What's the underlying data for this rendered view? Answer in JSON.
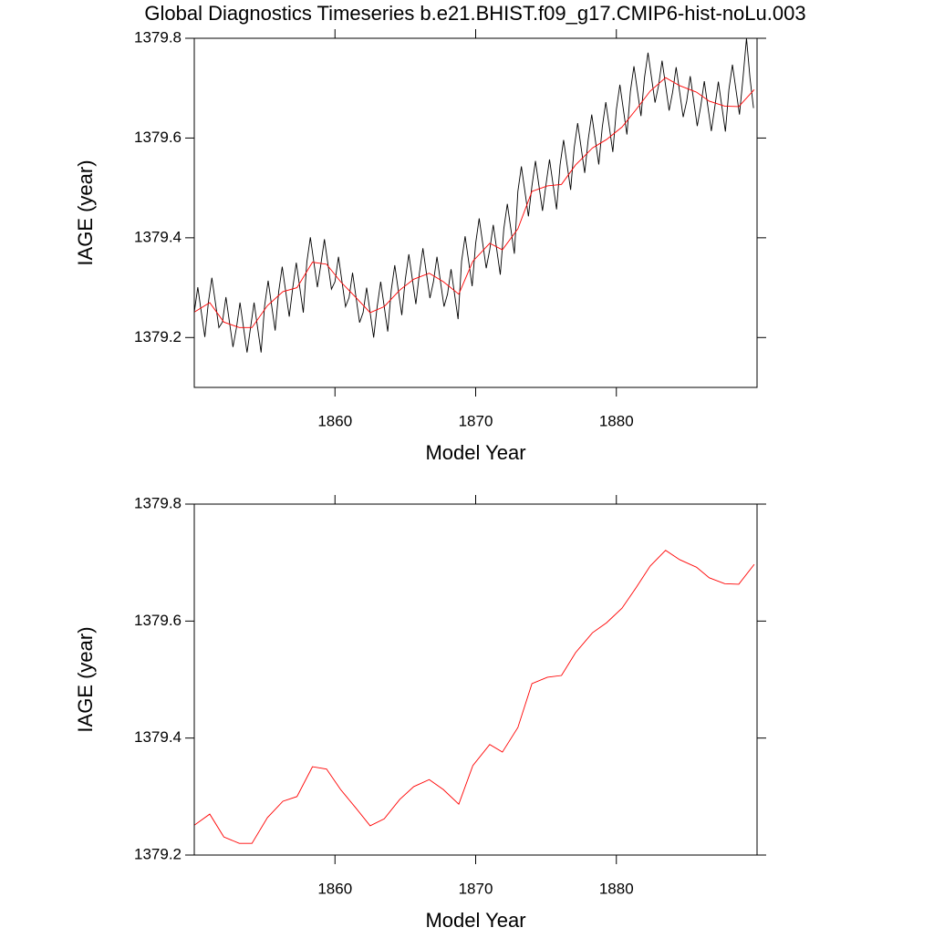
{
  "chart_data": [
    {
      "type": "line",
      "title": "Global Diagnostics Timeseries b.e21.BHIST.f09_g17.CMIP6-hist-noLu.003",
      "xlabel": "Model Year",
      "ylabel": "IAGE (year)",
      "xlim": [
        1850,
        1890
      ],
      "ylim": [
        1379.1,
        1379.8
      ],
      "xticks": [
        1860,
        1870,
        1880
      ],
      "yticks": [
        1379.2,
        1379.4,
        1379.6,
        1379.8
      ],
      "series": [
        {
          "color": "#000000",
          "x": [
            1850,
            1850.25,
            1850.5,
            1850.75,
            1851,
            1851.25,
            1851.5,
            1851.75,
            1852,
            1852.25,
            1852.5,
            1852.75,
            1853,
            1853.25,
            1853.5,
            1853.75,
            1854,
            1854.25,
            1854.5,
            1854.75,
            1855,
            1855.25,
            1855.5,
            1855.75,
            1856,
            1856.25,
            1856.5,
            1856.75,
            1857,
            1857.25,
            1857.5,
            1857.75,
            1858,
            1858.25,
            1858.5,
            1858.75,
            1859,
            1859.25,
            1859.5,
            1859.75,
            1860,
            1860.25,
            1860.5,
            1860.75,
            1861,
            1861.25,
            1861.5,
            1861.75,
            1862,
            1862.25,
            1862.5,
            1862.75,
            1863,
            1863.25,
            1863.5,
            1863.75,
            1864,
            1864.25,
            1864.5,
            1864.75,
            1865,
            1865.25,
            1865.5,
            1865.75,
            1866,
            1866.25,
            1866.5,
            1866.75,
            1867,
            1867.25,
            1867.5,
            1867.75,
            1868,
            1868.25,
            1868.5,
            1868.75,
            1869,
            1869.25,
            1869.5,
            1869.75,
            1870,
            1870.25,
            1870.5,
            1870.75,
            1871,
            1871.25,
            1871.5,
            1871.75,
            1872,
            1872.25,
            1872.5,
            1872.75,
            1873,
            1873.25,
            1873.5,
            1873.75,
            1874,
            1874.25,
            1874.5,
            1874.75,
            1875,
            1875.25,
            1875.5,
            1875.75,
            1876,
            1876.25,
            1876.5,
            1876.75,
            1877,
            1877.25,
            1877.5,
            1877.75,
            1878,
            1878.25,
            1878.5,
            1878.75,
            1879,
            1879.25,
            1879.5,
            1879.75,
            1880,
            1880.25,
            1880.5,
            1880.75,
            1881,
            1881.25,
            1881.5,
            1881.75,
            1882,
            1882.25,
            1882.5,
            1882.75,
            1883,
            1883.25,
            1883.5,
            1883.75,
            1884,
            1884.25,
            1884.5,
            1884.75,
            1885,
            1885.25,
            1885.5,
            1885.75,
            1886,
            1886.25,
            1886.5,
            1886.75,
            1887,
            1887.25,
            1887.5,
            1887.75,
            1888,
            1888.25,
            1888.5,
            1888.75,
            1889,
            1889.25,
            1889.5,
            1889.75
          ],
          "values": [
            1379.251,
            1379.301,
            1379.251,
            1379.201,
            1379.27,
            1379.32,
            1379.27,
            1379.22,
            1379.231,
            1379.281,
            1379.231,
            1379.181,
            1379.22,
            1379.27,
            1379.22,
            1379.17,
            1379.22,
            1379.27,
            1379.22,
            1379.17,
            1379.264,
            1379.314,
            1379.264,
            1379.214,
            1379.292,
            1379.342,
            1379.292,
            1379.242,
            1379.3,
            1379.35,
            1379.3,
            1379.25,
            1379.351,
            1379.401,
            1379.351,
            1379.301,
            1379.347,
            1379.397,
            1379.347,
            1379.297,
            1379.312,
            1379.362,
            1379.312,
            1379.262,
            1379.28,
            1379.33,
            1379.28,
            1379.23,
            1379.25,
            1379.3,
            1379.25,
            1379.2,
            1379.262,
            1379.312,
            1379.262,
            1379.212,
            1379.295,
            1379.345,
            1379.295,
            1379.245,
            1379.317,
            1379.367,
            1379.317,
            1379.267,
            1379.329,
            1379.379,
            1379.329,
            1379.279,
            1379.312,
            1379.362,
            1379.312,
            1379.262,
            1379.287,
            1379.337,
            1379.287,
            1379.237,
            1379.353,
            1379.403,
            1379.353,
            1379.303,
            1379.389,
            1379.439,
            1379.389,
            1379.339,
            1379.376,
            1379.426,
            1379.376,
            1379.326,
            1379.418,
            1379.468,
            1379.418,
            1379.368,
            1379.493,
            1379.543,
            1379.493,
            1379.443,
            1379.504,
            1379.554,
            1379.504,
            1379.454,
            1379.507,
            1379.557,
            1379.507,
            1379.457,
            1379.546,
            1379.596,
            1379.546,
            1379.496,
            1379.58,
            1379.63,
            1379.58,
            1379.53,
            1379.597,
            1379.647,
            1379.597,
            1379.547,
            1379.622,
            1379.672,
            1379.622,
            1379.572,
            1379.657,
            1379.707,
            1379.657,
            1379.607,
            1379.694,
            1379.744,
            1379.694,
            1379.644,
            1379.721,
            1379.771,
            1379.721,
            1379.671,
            1379.705,
            1379.755,
            1379.705,
            1379.655,
            1379.692,
            1379.742,
            1379.692,
            1379.642,
            1379.674,
            1379.724,
            1379.674,
            1379.624,
            1379.664,
            1379.714,
            1379.664,
            1379.614,
            1379.663,
            1379.713,
            1379.663,
            1379.613,
            1379.697,
            1379.747,
            1379.697,
            1379.647,
            1379.72,
            1379.8,
            1379.72,
            1379.66
          ]
        },
        {
          "color": "#ff0000",
          "x": [
            1850.0,
            1851.1,
            1852.1,
            1853.2,
            1854.1,
            1855.2,
            1856.3,
            1857.3,
            1858.4,
            1859.4,
            1860.4,
            1861.5,
            1862.5,
            1863.5,
            1864.6,
            1865.6,
            1866.7,
            1867.7,
            1868.8,
            1869.8,
            1871.0,
            1871.9,
            1873.0,
            1874.0,
            1875.1,
            1876.1,
            1877.1,
            1878.3,
            1879.3,
            1880.4,
            1881.4,
            1882.4,
            1883.5,
            1884.5,
            1885.7,
            1886.6,
            1887.7,
            1888.7,
            1889.8
          ],
          "values": [
            1379.251,
            1379.27,
            1379.231,
            1379.22,
            1379.22,
            1379.264,
            1379.292,
            1379.3,
            1379.351,
            1379.347,
            1379.312,
            1379.28,
            1379.25,
            1379.262,
            1379.295,
            1379.317,
            1379.329,
            1379.312,
            1379.287,
            1379.353,
            1379.389,
            1379.376,
            1379.418,
            1379.493,
            1379.504,
            1379.507,
            1379.546,
            1379.58,
            1379.597,
            1379.622,
            1379.657,
            1379.694,
            1379.721,
            1379.705,
            1379.692,
            1379.674,
            1379.664,
            1379.663,
            1379.697
          ]
        }
      ]
    },
    {
      "type": "line",
      "xlabel": "Model Year",
      "ylabel": "IAGE (year)",
      "xlim": [
        1850,
        1890
      ],
      "ylim": [
        1379.2,
        1379.8
      ],
      "xticks": [
        1860,
        1870,
        1880
      ],
      "yticks": [
        1379.2,
        1379.4,
        1379.6,
        1379.8
      ],
      "series": [
        {
          "color": "#ff0000",
          "x": [
            1850.0,
            1851.1,
            1852.1,
            1853.2,
            1854.1,
            1855.2,
            1856.3,
            1857.3,
            1858.4,
            1859.4,
            1860.4,
            1861.5,
            1862.5,
            1863.5,
            1864.6,
            1865.6,
            1866.7,
            1867.7,
            1868.8,
            1869.8,
            1871.0,
            1871.9,
            1873.0,
            1874.0,
            1875.1,
            1876.1,
            1877.1,
            1878.3,
            1879.3,
            1880.4,
            1881.4,
            1882.4,
            1883.5,
            1884.5,
            1885.7,
            1886.6,
            1887.7,
            1888.7,
            1889.8
          ],
          "values": [
            1379.251,
            1379.27,
            1379.231,
            1379.22,
            1379.22,
            1379.264,
            1379.292,
            1379.3,
            1379.351,
            1379.347,
            1379.312,
            1379.28,
            1379.25,
            1379.262,
            1379.295,
            1379.317,
            1379.329,
            1379.312,
            1379.287,
            1379.353,
            1379.389,
            1379.376,
            1379.418,
            1379.493,
            1379.504,
            1379.507,
            1379.546,
            1379.58,
            1379.597,
            1379.622,
            1379.657,
            1379.694,
            1379.721,
            1379.705,
            1379.692,
            1379.674,
            1379.664,
            1379.663,
            1379.697
          ]
        }
      ]
    }
  ]
}
